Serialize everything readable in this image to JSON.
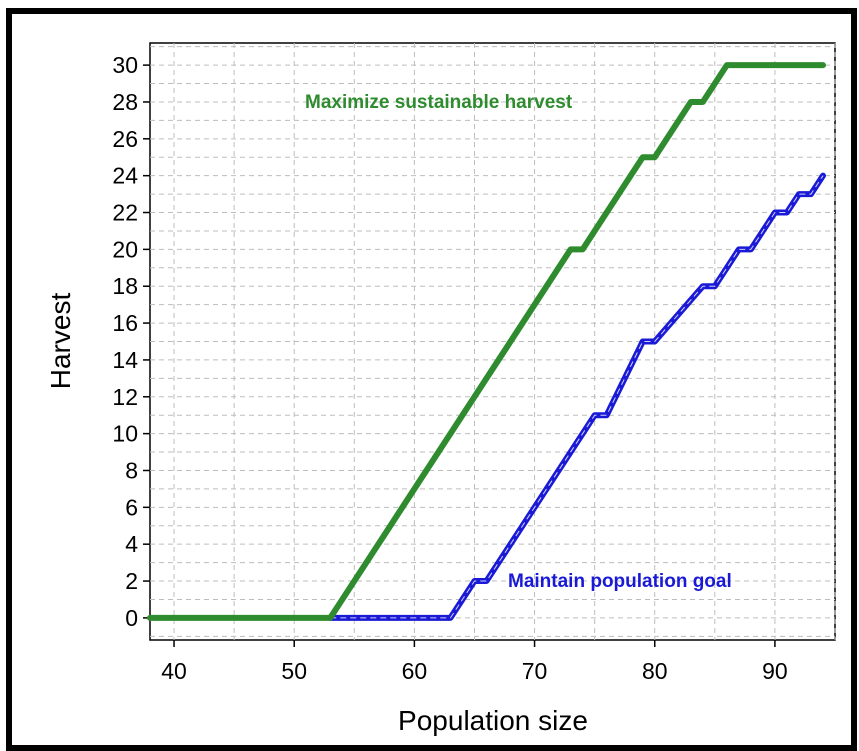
{
  "chart_data": {
    "type": "line",
    "title": "",
    "xlabel": "Population size",
    "ylabel": "Harvest",
    "xlim": [
      38,
      95
    ],
    "ylim": [
      -1.2,
      31.2
    ],
    "x_ticks": [
      40,
      50,
      60,
      70,
      80,
      90
    ],
    "y_ticks": [
      0,
      2,
      4,
      6,
      8,
      10,
      12,
      14,
      16,
      18,
      20,
      22,
      24,
      26,
      28,
      30
    ],
    "grid": true,
    "series": [
      {
        "name": "Maximize sustainable harvest",
        "color": "#2e8b2e",
        "x": [
          38,
          53,
          73,
          74,
          79,
          80,
          83,
          84,
          86,
          94
        ],
        "y": [
          0,
          0,
          20,
          20,
          25,
          25,
          28,
          28,
          30,
          30
        ]
      },
      {
        "name": "Maintain population goal",
        "color": "#1a1ad6",
        "x": [
          53,
          63,
          65,
          66,
          75,
          76,
          79,
          80,
          84,
          85,
          87,
          88,
          90,
          91,
          92,
          93,
          94
        ],
        "y": [
          0,
          0,
          2,
          2,
          11,
          11,
          15,
          15,
          18,
          18,
          20,
          20,
          22,
          22,
          23,
          23,
          24
        ]
      }
    ],
    "annotations": [
      {
        "text": "Maximize sustainable harvest",
        "color": "#2e8b2e"
      },
      {
        "text": "Maintain population goal",
        "color": "#1a1ad6"
      }
    ]
  }
}
